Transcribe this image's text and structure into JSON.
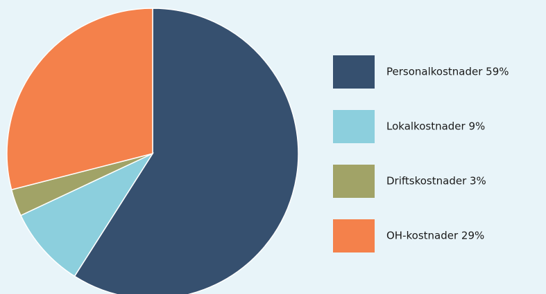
{
  "chart_data": {
    "type": "pie",
    "categories": [
      "Personalkostnader 59%",
      "Lokalkostnader 9%",
      "Driftskostnader 3%",
      "OH-kostnader 29%"
    ],
    "values": [
      59,
      9,
      3,
      29
    ],
    "colors": [
      "#36506f",
      "#8ccfdd",
      "#a1a367",
      "#f4814b"
    ]
  }
}
